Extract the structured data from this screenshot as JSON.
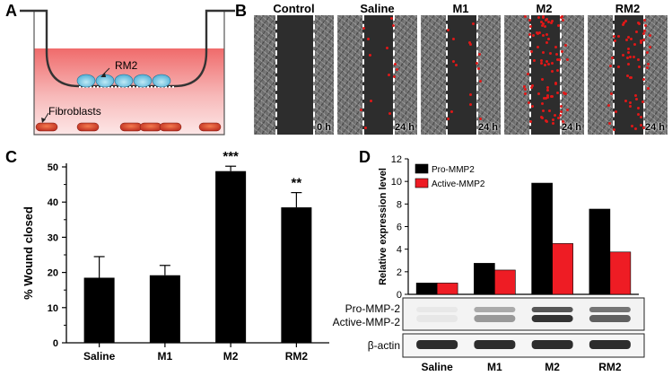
{
  "panels": {
    "a": {
      "letter": "A",
      "rm2_label": "RM2",
      "fibroblast_label": "Fibroblasts"
    },
    "b": {
      "letter": "B",
      "columns": [
        {
          "title": "Control",
          "time": "0 h",
          "red_level": 0
        },
        {
          "title": "Saline",
          "time": "24 h",
          "red_level": 1
        },
        {
          "title": "M1",
          "time": "24 h",
          "red_level": 1
        },
        {
          "title": "M2",
          "time": "24 h",
          "red_level": 3
        },
        {
          "title": "RM2",
          "time": "24 h",
          "red_level": 2
        }
      ]
    },
    "c": {
      "letter": "C"
    },
    "d": {
      "letter": "D",
      "blot_labels": {
        "pro": "Pro-MMP-2",
        "active": "Active-MMP-2",
        "actin": "β-actin"
      }
    }
  },
  "chart_data": [
    {
      "type": "bar",
      "categories": [
        "Saline",
        "M1",
        "M2",
        "RM2"
      ],
      "values": [
        18.5,
        19.2,
        48.8,
        38.5
      ],
      "errors": [
        6.0,
        2.8,
        1.4,
        4.2
      ],
      "significance": [
        "",
        "",
        "***",
        "**"
      ],
      "ylabel": "% Wound closed",
      "ylim": [
        0,
        50
      ],
      "yticks": [
        0,
        10,
        20,
        30,
        40,
        50
      ],
      "color": "#000000"
    },
    {
      "type": "bar",
      "categories": [
        "Saline",
        "M1",
        "M2",
        "RM2"
      ],
      "ylabel": "Relative expression level",
      "ylim": [
        0,
        12
      ],
      "yticks": [
        0,
        2,
        4,
        6,
        8,
        10,
        12
      ],
      "legend_position": "top-left",
      "series": [
        {
          "name": "Pro-MMP2",
          "color": "#000000",
          "values": [
            1.0,
            2.75,
            9.85,
            7.55
          ]
        },
        {
          "name": "Active-MMP2",
          "color": "#ee1c24",
          "values": [
            1.0,
            2.15,
            4.5,
            3.75
          ]
        }
      ]
    }
  ]
}
